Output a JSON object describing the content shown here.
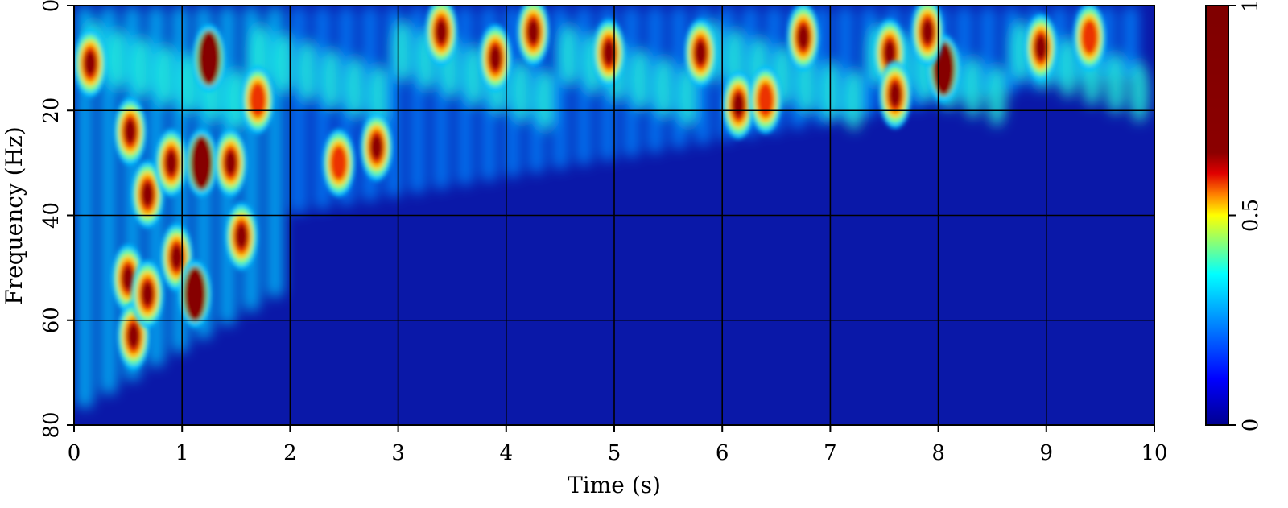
{
  "chart_data": {
    "type": "heatmap",
    "title": "",
    "xlabel": "Time (s)",
    "ylabel": "Frequency (Hz)",
    "xlim": [
      0,
      10
    ],
    "ylim": [
      0,
      80
    ],
    "y_inverted": true,
    "x_ticks": [
      "0",
      "1",
      "2",
      "3",
      "4",
      "5",
      "6",
      "7",
      "8",
      "9",
      "10"
    ],
    "y_ticks": [
      "0",
      "20",
      "40",
      "60",
      "80"
    ],
    "grid": true,
    "colormap": "jet",
    "colorbar": {
      "range": [
        0,
        1
      ],
      "ticks": [
        "0",
        "0.5",
        "1"
      ],
      "placement": "right"
    },
    "background_color": "#0a18a8",
    "hotspots": [
      {
        "t": 0.15,
        "f": 11,
        "value": 0.85
      },
      {
        "t": 0.52,
        "f": 24,
        "value": 0.85
      },
      {
        "t": 0.68,
        "f": 36,
        "value": 0.75
      },
      {
        "t": 0.5,
        "f": 52,
        "value": 0.75
      },
      {
        "t": 0.55,
        "f": 63,
        "value": 0.8
      },
      {
        "t": 0.68,
        "f": 55,
        "value": 0.9
      },
      {
        "t": 0.9,
        "f": 30,
        "value": 0.8
      },
      {
        "t": 0.95,
        "f": 48,
        "value": 0.7
      },
      {
        "t": 1.25,
        "f": 10,
        "value": 1.0
      },
      {
        "t": 1.18,
        "f": 30,
        "value": 1.0
      },
      {
        "t": 1.12,
        "f": 55,
        "value": 1.0
      },
      {
        "t": 1.55,
        "f": 44,
        "value": 0.85
      },
      {
        "t": 1.45,
        "f": 30,
        "value": 0.7
      },
      {
        "t": 1.7,
        "f": 18,
        "value": 0.6
      },
      {
        "t": 2.8,
        "f": 27,
        "value": 0.85
      },
      {
        "t": 2.45,
        "f": 30,
        "value": 0.65
      },
      {
        "t": 3.4,
        "f": 5,
        "value": 0.75
      },
      {
        "t": 3.9,
        "f": 10,
        "value": 0.85
      },
      {
        "t": 4.25,
        "f": 5,
        "value": 0.8
      },
      {
        "t": 4.95,
        "f": 9,
        "value": 0.85
      },
      {
        "t": 5.8,
        "f": 9,
        "value": 0.8
      },
      {
        "t": 6.15,
        "f": 19,
        "value": 0.75
      },
      {
        "t": 6.4,
        "f": 18,
        "value": 0.6
      },
      {
        "t": 6.75,
        "f": 6,
        "value": 0.85
      },
      {
        "t": 7.55,
        "f": 9,
        "value": 0.85
      },
      {
        "t": 7.6,
        "f": 17,
        "value": 0.7
      },
      {
        "t": 8.05,
        "f": 12,
        "value": 1.0
      },
      {
        "t": 7.9,
        "f": 5,
        "value": 0.8
      },
      {
        "t": 8.95,
        "f": 8,
        "value": 0.8
      },
      {
        "t": 9.4,
        "f": 6,
        "value": 0.6
      }
    ]
  }
}
